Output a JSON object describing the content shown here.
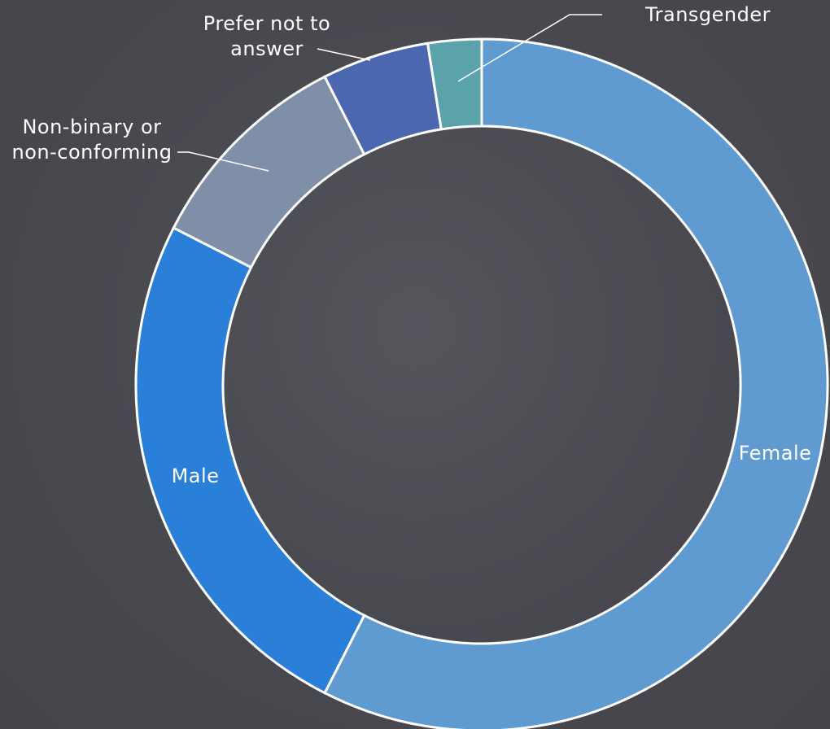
{
  "chart_data": {
    "type": "donut",
    "categories": [
      "Female",
      "Male",
      "Non-binary or non-conforming",
      "Prefer not to answer",
      "Transgender"
    ],
    "values": [
      57.5,
      25,
      10,
      5,
      2.5
    ],
    "colors": [
      "#5f9bd1",
      "#2a7fd8",
      "#7f8fa8",
      "#4a67b0",
      "#5aa3aa"
    ]
  }
}
